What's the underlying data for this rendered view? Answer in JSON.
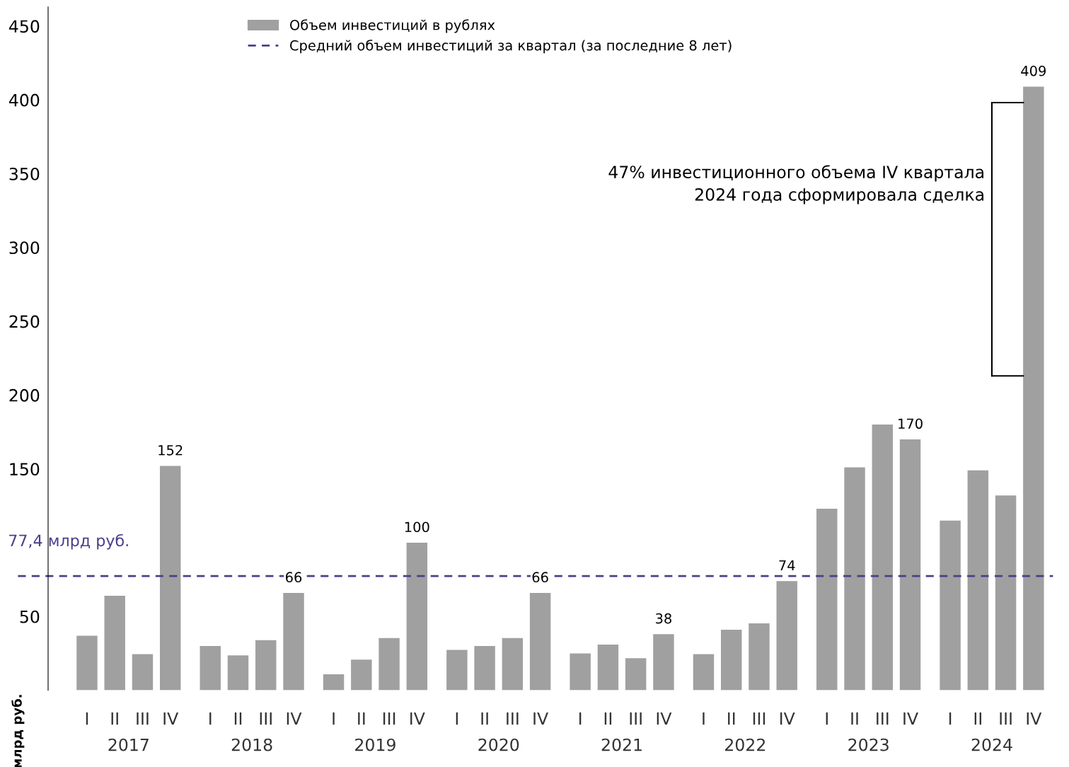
{
  "chart_data": {
    "type": "bar",
    "categories": [
      "I",
      "II",
      "III",
      "IV",
      "I",
      "II",
      "III",
      "IV",
      "I",
      "II",
      "III",
      "IV",
      "I",
      "II",
      "III",
      "IV",
      "I",
      "II",
      "III",
      "IV",
      "I",
      "II",
      "III",
      "IV",
      "I",
      "II",
      "III",
      "IV",
      "I",
      "II",
      "III",
      "IV"
    ],
    "series": [
      {
        "name": "Объем инвестиций в рублях",
        "color": "#a0a0a0",
        "values": [
          37,
          64,
          24.5,
          152,
          30,
          23.6,
          34,
          66,
          10.8,
          20.8,
          35.4,
          100,
          27.4,
          30,
          35.4,
          66,
          25,
          31,
          21.7,
          38,
          24.5,
          41,
          45.3,
          74,
          123,
          151,
          180,
          170,
          115,
          149,
          132,
          409
        ],
        "value_labels": [
          null,
          null,
          null,
          "152",
          null,
          null,
          null,
          "66",
          null,
          null,
          null,
          "100",
          null,
          null,
          null,
          "66",
          null,
          null,
          null,
          "38",
          null,
          null,
          null,
          "74",
          null,
          null,
          null,
          "170",
          null,
          null,
          null,
          "409"
        ]
      }
    ],
    "ylabel": "млрд руб.",
    "ylim": [
      0,
      463
    ],
    "yticks": [
      50,
      150,
      200,
      250,
      300,
      350,
      400,
      450
    ],
    "ref_lines": [
      {
        "axis": "y",
        "value": 77.4,
        "label": "Средний объем инвестиций за квартал (за последние 8 лет)",
        "color": "#4b3f8c",
        "line_style": "dashed"
      }
    ],
    "annotations": [
      {
        "text": "77,4 млрд руб.",
        "y": 77.4
      },
      "47% инвестиционного объема IV квартала 2024 года сформировала сделка",
      "2017",
      "2018",
      "2019",
      "2020",
      "2021",
      "2022",
      "2023",
      "2024"
    ],
    "legend": "top",
    "grid": false
  }
}
